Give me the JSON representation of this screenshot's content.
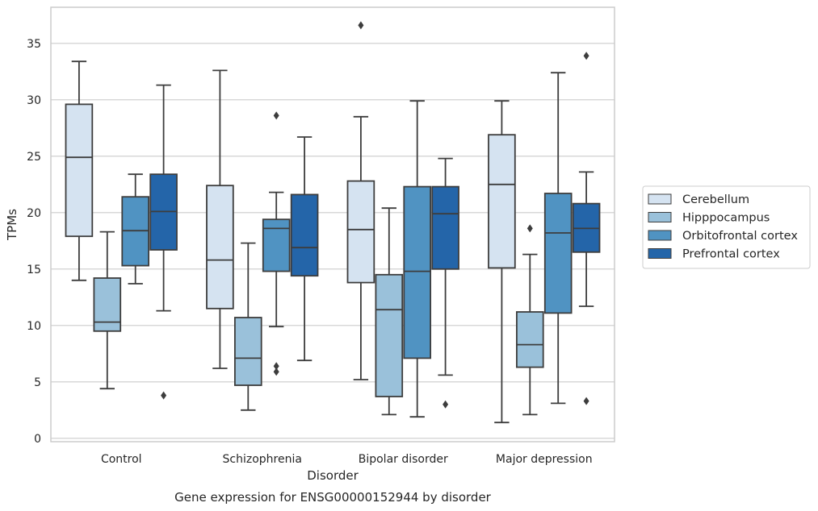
{
  "chart_data": {
    "type": "box",
    "title": "Gene expression for ENSG00000152944 by disorder",
    "xlabel": "Disorder",
    "ylabel": "TPMs",
    "ylim": [
      -0.3,
      38.2
    ],
    "yticks": [
      0,
      5,
      10,
      15,
      20,
      25,
      30,
      35
    ],
    "grid": "horizontal",
    "legend_position": "right",
    "categories": [
      "Control",
      "Schizophrenia",
      "Bipolar disorder",
      "Major depression"
    ],
    "series": [
      {
        "name": "Cerebellum",
        "color": "#d5e3f1",
        "boxes": [
          {
            "whislo": 14.0,
            "q1": 17.9,
            "med": 24.9,
            "q3": 29.6,
            "whishi": 33.4,
            "fliers": []
          },
          {
            "whislo": 6.2,
            "q1": 11.5,
            "med": 15.8,
            "q3": 22.4,
            "whishi": 32.6,
            "fliers": []
          },
          {
            "whislo": 5.2,
            "q1": 13.8,
            "med": 18.5,
            "q3": 22.8,
            "whishi": 28.5,
            "fliers": [
              36.6
            ]
          },
          {
            "whislo": 1.4,
            "q1": 15.1,
            "med": 22.5,
            "q3": 26.9,
            "whishi": 29.9,
            "fliers": []
          }
        ]
      },
      {
        "name": "Hipppocampus",
        "color": "#9ac1da",
        "boxes": [
          {
            "whislo": 4.4,
            "q1": 9.5,
            "med": 10.3,
            "q3": 14.2,
            "whishi": 18.3,
            "fliers": []
          },
          {
            "whislo": 2.5,
            "q1": 4.7,
            "med": 7.1,
            "q3": 10.7,
            "whishi": 17.3,
            "fliers": []
          },
          {
            "whislo": 2.1,
            "q1": 3.7,
            "med": 11.4,
            "q3": 14.5,
            "whishi": 20.4,
            "fliers": []
          },
          {
            "whislo": 2.1,
            "q1": 6.3,
            "med": 8.3,
            "q3": 11.2,
            "whishi": 16.3,
            "fliers": [
              18.6
            ]
          }
        ]
      },
      {
        "name": "Orbitofrontal cortex",
        "color": "#5093c2",
        "boxes": [
          {
            "whislo": 13.7,
            "q1": 15.3,
            "med": 18.4,
            "q3": 21.4,
            "whishi": 23.4,
            "fliers": []
          },
          {
            "whislo": 9.9,
            "q1": 14.8,
            "med": 18.6,
            "q3": 19.4,
            "whishi": 21.8,
            "fliers": [
              28.6,
              6.4,
              5.9
            ]
          },
          {
            "whislo": 1.9,
            "q1": 7.1,
            "med": 14.8,
            "q3": 22.3,
            "whishi": 29.9,
            "fliers": []
          },
          {
            "whislo": 3.1,
            "q1": 11.1,
            "med": 18.2,
            "q3": 21.7,
            "whishi": 32.4,
            "fliers": []
          }
        ]
      },
      {
        "name": "Prefrontal cortex",
        "color": "#2465a9",
        "boxes": [
          {
            "whislo": 11.3,
            "q1": 16.7,
            "med": 20.1,
            "q3": 23.4,
            "whishi": 31.3,
            "fliers": [
              3.8
            ]
          },
          {
            "whislo": 6.9,
            "q1": 14.4,
            "med": 16.9,
            "q3": 21.6,
            "whishi": 26.7,
            "fliers": []
          },
          {
            "whislo": 5.6,
            "q1": 15.0,
            "med": 19.9,
            "q3": 22.3,
            "whishi": 24.8,
            "fliers": [
              3.0
            ]
          },
          {
            "whislo": 11.7,
            "q1": 16.5,
            "med": 18.6,
            "q3": 20.8,
            "whishi": 23.6,
            "fliers": [
              33.9,
              3.3
            ]
          }
        ]
      }
    ]
  }
}
